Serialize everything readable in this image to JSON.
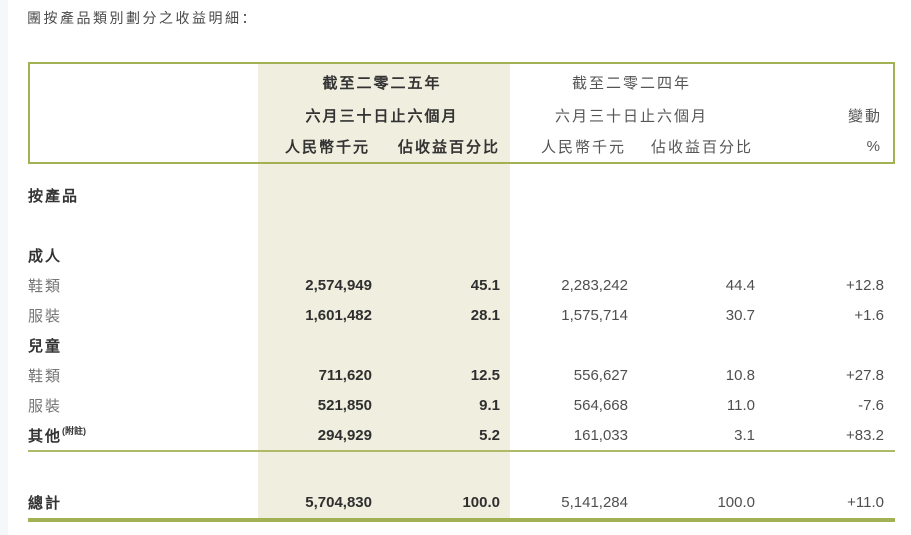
{
  "page": {
    "title": "團按產品類別劃分之收益明細："
  },
  "table": {
    "header": {
      "period_2025_line1": "截至二零二五年",
      "period_2025_line2": "六月三十日止六個月",
      "period_2024_line1": "截至二零二四年",
      "period_2024_line2": "六月三十日止六個月",
      "unit_2025": "人民幣千元",
      "pct_2025": "佔收益百分比",
      "unit_2024": "人民幣千元",
      "pct_2024": "佔收益百分比",
      "change_label": "變動",
      "change_unit": "%"
    },
    "rows": [
      {
        "kind": "section",
        "label": "按產品"
      },
      {
        "kind": "blank1"
      },
      {
        "kind": "section",
        "label": "成人"
      },
      {
        "kind": "data",
        "label": "鞋類",
        "v2025": "2,574,949",
        "p2025": "45.1",
        "v2024": "2,283,242",
        "p2024": "44.4",
        "change": "+12.8"
      },
      {
        "kind": "data",
        "label": "服裝",
        "v2025": "1,601,482",
        "p2025": "28.1",
        "v2024": "1,575,714",
        "p2024": "30.7",
        "change": "+1.6"
      },
      {
        "kind": "section",
        "label": "兒童"
      },
      {
        "kind": "data",
        "label": "鞋類",
        "v2025": "711,620",
        "p2025": "12.5",
        "v2024": "556,627",
        "p2024": "10.8",
        "change": "+27.8"
      },
      {
        "kind": "data",
        "label": "服裝",
        "v2025": "521,850",
        "p2025": "9.1",
        "v2024": "564,668",
        "p2024": "11.0",
        "change": "-7.6"
      },
      {
        "kind": "data-section",
        "label": "其他",
        "sup": "(附註)",
        "v2025": "294,929",
        "p2025": "5.2",
        "v2024": "161,033",
        "p2024": "3.1",
        "change": "+83.2",
        "rule_after": true
      },
      {
        "kind": "blank2"
      },
      {
        "kind": "total",
        "label": "總計",
        "v2025": "5,704,830",
        "p2025": "100.0",
        "v2024": "5,141,284",
        "p2024": "100.0",
        "change": "+11.0"
      }
    ],
    "colors": {
      "border_olive": "#a3b155",
      "rule_olive": "#aebb66",
      "highlight_beige": "#f0efdf"
    }
  }
}
